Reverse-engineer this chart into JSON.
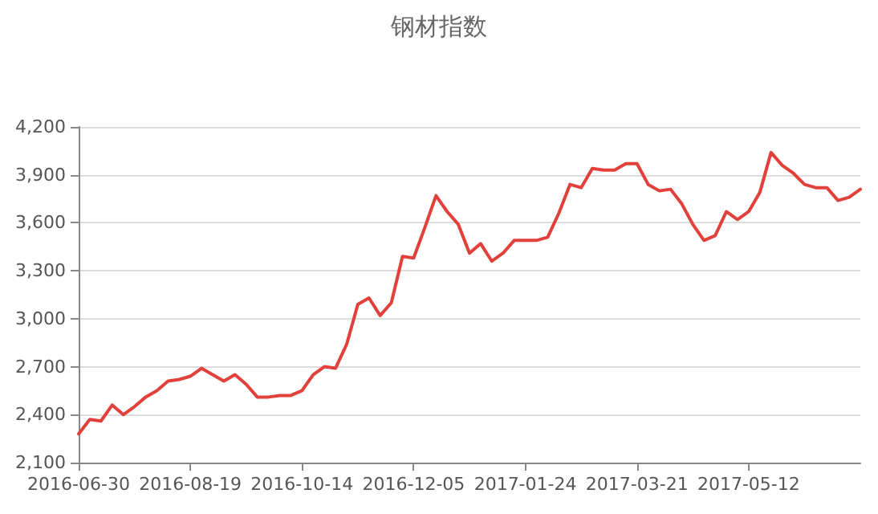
{
  "chart_data": {
    "type": "line",
    "title": "钢材指数",
    "categories": [
      "2016-06-30",
      null,
      null,
      null,
      null,
      null,
      null,
      null,
      null,
      null,
      "2016-08-19",
      null,
      null,
      null,
      null,
      null,
      null,
      null,
      null,
      null,
      "2016-10-14",
      null,
      null,
      null,
      null,
      null,
      null,
      null,
      null,
      null,
      "2016-12-05",
      null,
      null,
      null,
      null,
      null,
      null,
      null,
      null,
      null,
      "2017-01-24",
      null,
      null,
      null,
      null,
      null,
      null,
      null,
      null,
      null,
      "2017-03-21",
      null,
      null,
      null,
      null,
      null,
      null,
      null,
      null,
      null,
      "2017-05-12",
      null,
      null,
      null,
      null,
      null,
      null,
      null,
      null,
      null,
      null
    ],
    "series": [
      {
        "color": "#e2403a",
        "values": [
          2280,
          2370,
          2360,
          2460,
          2400,
          2450,
          2510,
          2550,
          2610,
          2620,
          2640,
          2690,
          2650,
          2610,
          2650,
          2590,
          2510,
          2510,
          2520,
          2520,
          2550,
          2650,
          2700,
          2690,
          2840,
          3090,
          3130,
          3020,
          3100,
          3390,
          3380,
          3570,
          3770,
          3670,
          3590,
          3410,
          3470,
          3360,
          3410,
          3490,
          3490,
          3490,
          3510,
          3660,
          3840,
          3820,
          3940,
          3930,
          3930,
          3970,
          3970,
          3840,
          3800,
          3810,
          3720,
          3590,
          3490,
          3520,
          3670,
          3620,
          3670,
          3790,
          4040,
          3960,
          3910,
          3840,
          3820,
          3820,
          3740,
          3760,
          3810
        ]
      }
    ],
    "ylim": [
      2100,
      4200
    ],
    "yticks": [
      {
        "value": 2100,
        "label": "2,100"
      },
      {
        "value": 2400,
        "label": "2,400"
      },
      {
        "value": 2700,
        "label": "2,700"
      },
      {
        "value": 3000,
        "label": "3,000"
      },
      {
        "value": 3300,
        "label": "3,300"
      },
      {
        "value": 3600,
        "label": "3,600"
      },
      {
        "value": 3900,
        "label": "3,900"
      },
      {
        "value": 4200,
        "label": "4,200"
      }
    ],
    "grid": "y",
    "marker": "none",
    "line_style": "solid"
  }
}
